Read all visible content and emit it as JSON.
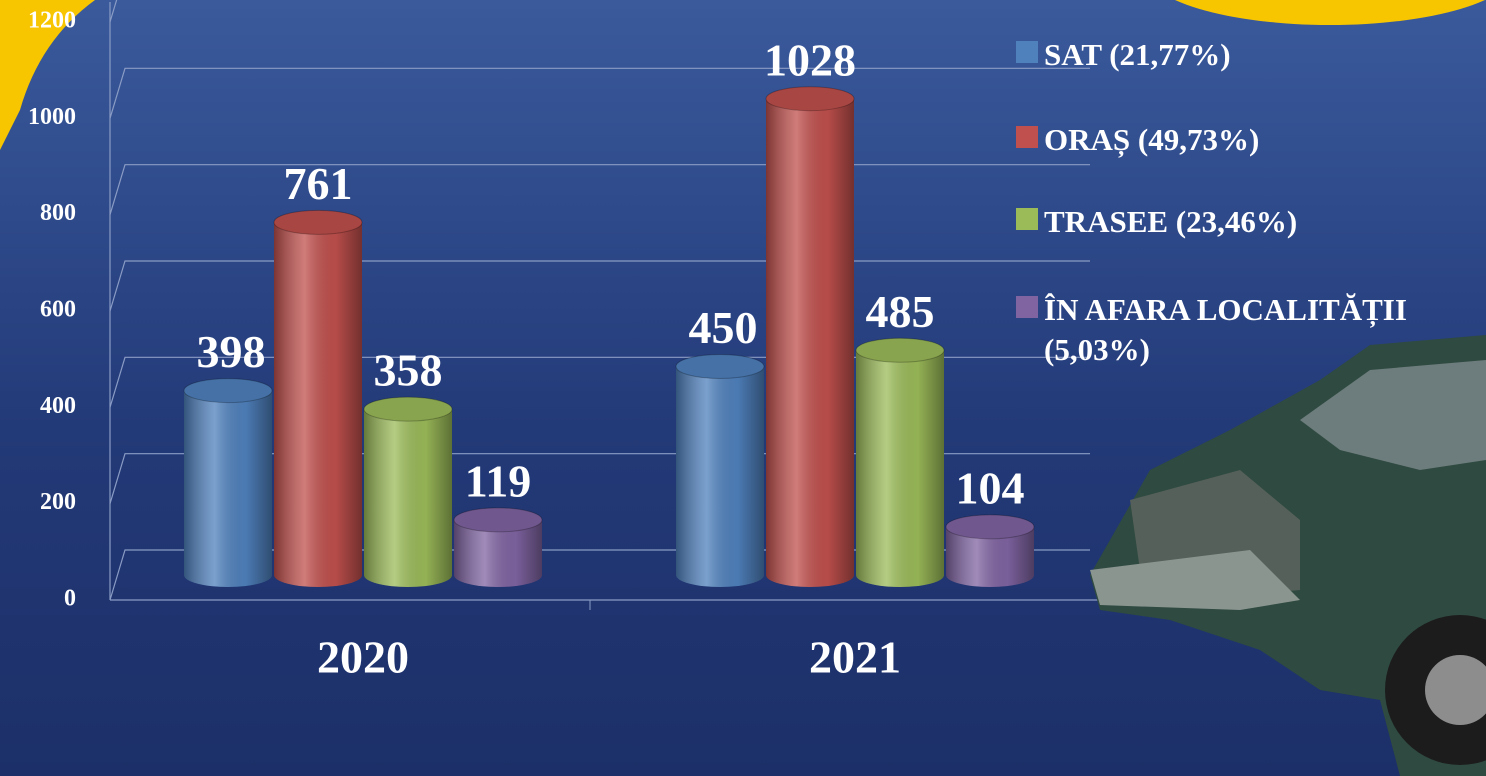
{
  "chart_data": {
    "type": "bar3d",
    "categories": [
      "2020",
      "2021"
    ],
    "series": [
      {
        "name": "SAT (21,77%)",
        "color": "#4f81bd",
        "values": [
          398,
          450
        ]
      },
      {
        "name": "ORAȘ (49,73%)",
        "color": "#c0504d",
        "values": [
          761,
          1028
        ]
      },
      {
        "name": "TRASEE (23,46%)",
        "color": "#9bbb59",
        "values": [
          358,
          485
        ]
      },
      {
        "name": "ÎN AFARA LOCALITĂȚII (5,03%)",
        "color": "#8064a2",
        "values": [
          119,
          104
        ]
      }
    ],
    "ylim": [
      0,
      1200
    ],
    "yticks": [
      0,
      200,
      400,
      600,
      800,
      1000,
      1200
    ],
    "grid": true,
    "legend": "right"
  }
}
